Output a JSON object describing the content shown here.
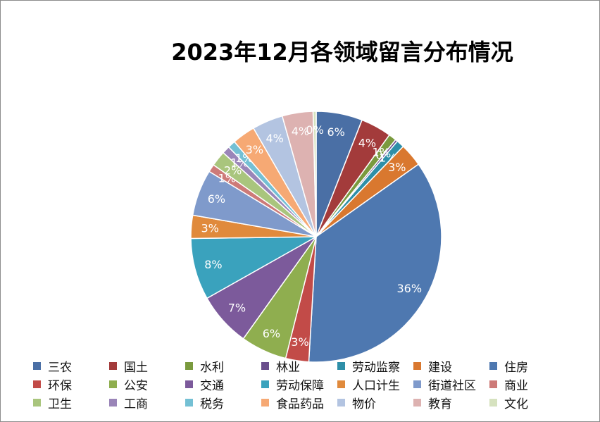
{
  "chart_data": {
    "type": "pie",
    "title": "2023年12月各领域留言分布情况",
    "series": [
      {
        "name": "三农",
        "value": 6,
        "label": "6%",
        "color": "#4a6fa5"
      },
      {
        "name": "国土",
        "value": 4,
        "label": "4%",
        "color": "#a33b3b"
      },
      {
        "name": "水利",
        "value": 1,
        "label": "1%",
        "color": "#7a9a3e"
      },
      {
        "name": "林业",
        "value": 0.3,
        "label": "0%",
        "color": "#6a4e8c"
      },
      {
        "name": "劳动监察",
        "value": 1,
        "label": "1%",
        "color": "#2e8fa8"
      },
      {
        "name": "建设",
        "value": 3,
        "label": "3%",
        "color": "#d9782f"
      },
      {
        "name": "住房",
        "value": 36,
        "label": "36%",
        "color": "#4e78b0"
      },
      {
        "name": "环保",
        "value": 3,
        "label": "3%",
        "color": "#c24b48"
      },
      {
        "name": "公安",
        "value": 6,
        "label": "6%",
        "color": "#8fae4f"
      },
      {
        "name": "交通",
        "value": 7,
        "label": "7%",
        "color": "#7c5a9b"
      },
      {
        "name": "劳动保障",
        "value": 8,
        "label": "8%",
        "color": "#3aa2bd"
      },
      {
        "name": "人口计生",
        "value": 3,
        "label": "3%",
        "color": "#e08a3c"
      },
      {
        "name": "街道社区",
        "value": 6,
        "label": "6%",
        "color": "#7f9acb"
      },
      {
        "name": "商业",
        "value": 1,
        "label": "1%",
        "color": "#cd7a78"
      },
      {
        "name": "卫生",
        "value": 2,
        "label": "2%",
        "color": "#a9c57d"
      },
      {
        "name": "工商",
        "value": 1,
        "label": "1%",
        "color": "#9a85b8"
      },
      {
        "name": "税务",
        "value": 1,
        "label": "1%",
        "color": "#74c0d4"
      },
      {
        "name": "食品药品",
        "value": 3,
        "label": "3%",
        "color": "#f6a974"
      },
      {
        "name": "物价",
        "value": 4,
        "label": "4%",
        "color": "#b3c4e1"
      },
      {
        "name": "教育",
        "value": 4,
        "label": "4%",
        "color": "#ddb2b1"
      },
      {
        "name": "文化",
        "value": 0.4,
        "label": "0%",
        "color": "#d6e2bf"
      }
    ],
    "legend_position": "bottom"
  }
}
